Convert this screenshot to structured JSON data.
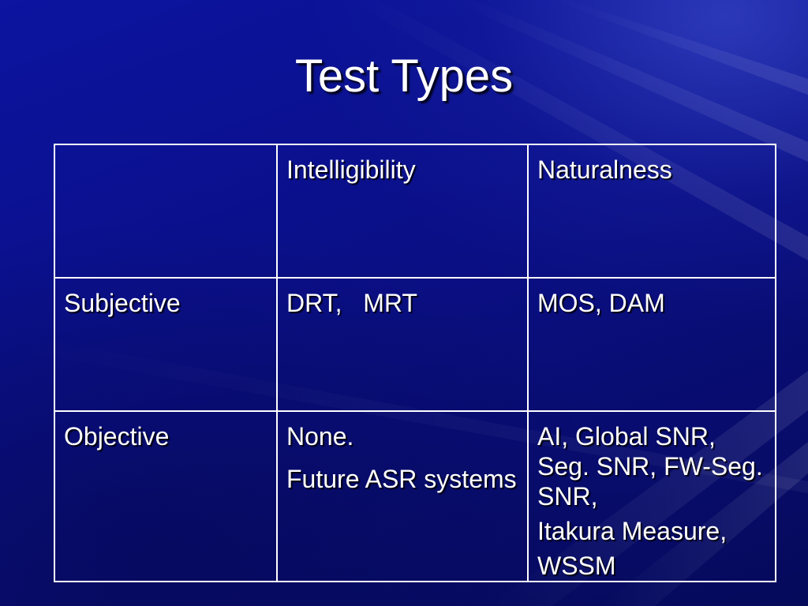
{
  "slide": {
    "title": "Test Types"
  },
  "table": {
    "header": {
      "corner": "",
      "col1": "Intelligibility",
      "col2": "Naturalness"
    },
    "rows": [
      {
        "label": "Subjective",
        "intelligibility": [
          "DRT,   MRT"
        ],
        "naturalness": [
          "MOS, DAM"
        ]
      },
      {
        "label": "Objective",
        "intelligibility": [
          "None.",
          "Future ASR systems"
        ],
        "naturalness": [
          "AI, Global SNR, Seg. SNR, FW-Seg. SNR,",
          "Itakura Measure,",
          "WSSM"
        ]
      }
    ]
  },
  "colors": {
    "background": "#0a1070",
    "text": "#ffffff",
    "border": "#ffffff"
  }
}
